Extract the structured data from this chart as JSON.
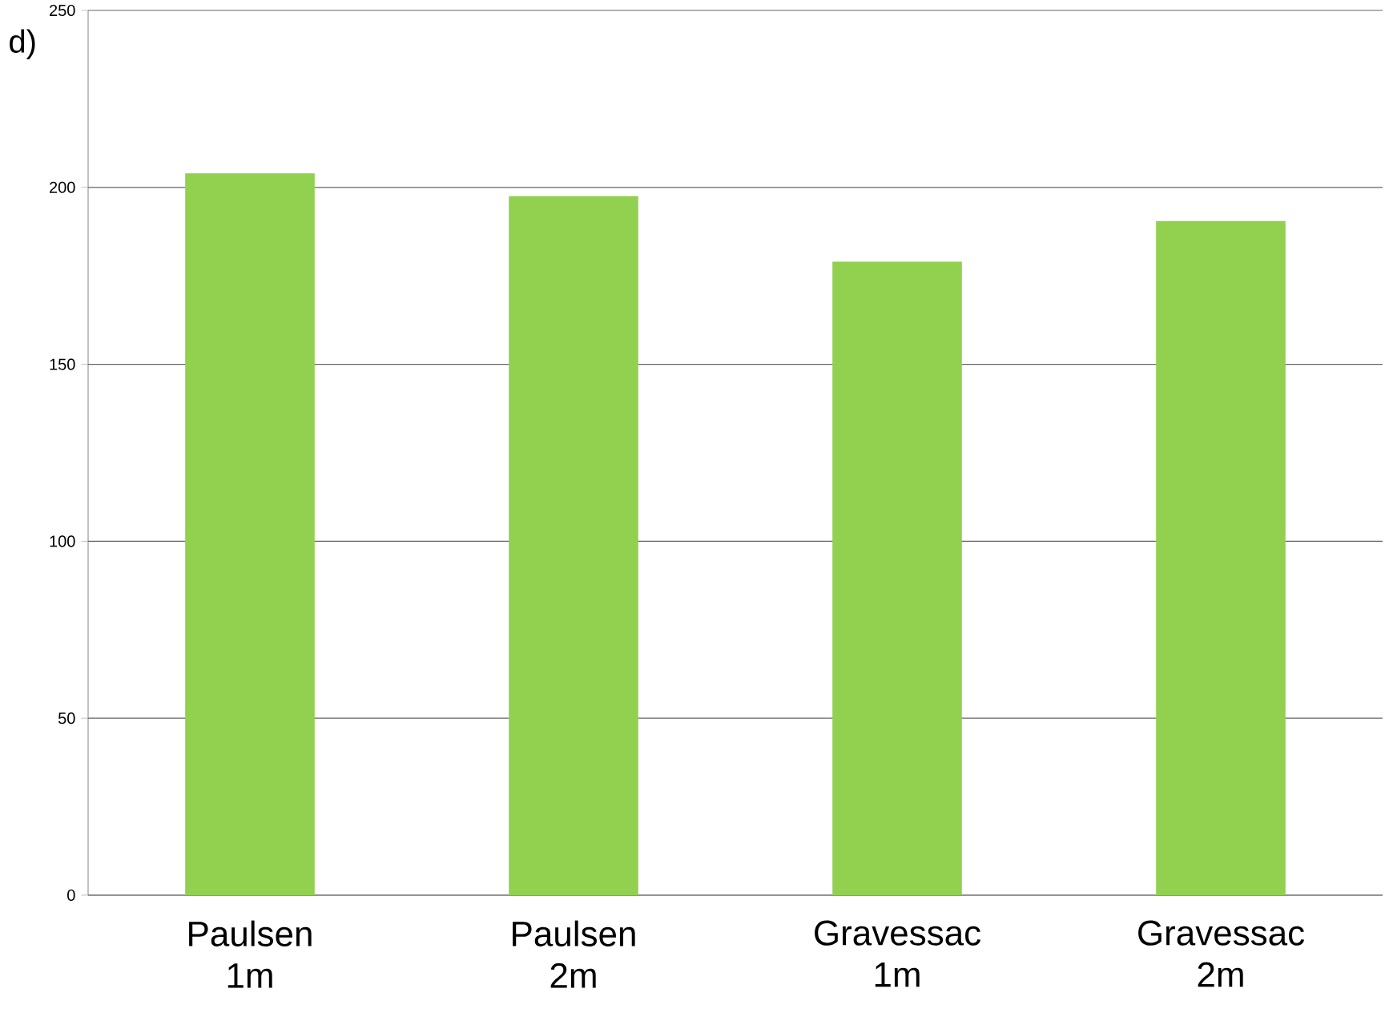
{
  "chart_data": {
    "type": "bar",
    "categories": [
      "Paulsen 1m",
      "Paulsen 2m",
      "Gravessac 1m",
      "Gravessac 2m"
    ],
    "values": [
      204,
      197.5,
      179,
      190.5
    ],
    "color": "#92d050",
    "ylim": [
      0,
      250
    ],
    "yticks": [
      0,
      50,
      100,
      150,
      200,
      250
    ],
    "grid": "y",
    "annotations": [
      "d)"
    ]
  }
}
